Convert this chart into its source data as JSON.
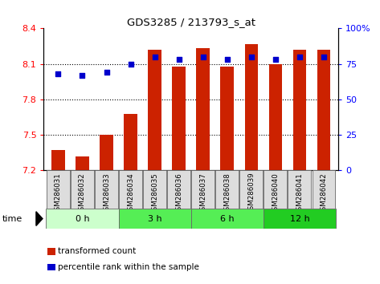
{
  "title": "GDS3285 / 213793_s_at",
  "samples": [
    "GSM286031",
    "GSM286032",
    "GSM286033",
    "GSM286034",
    "GSM286035",
    "GSM286036",
    "GSM286037",
    "GSM286038",
    "GSM286039",
    "GSM286040",
    "GSM286041",
    "GSM286042"
  ],
  "transformed_count": [
    7.37,
    7.32,
    7.5,
    7.68,
    8.22,
    8.08,
    8.23,
    8.08,
    8.27,
    8.1,
    8.22,
    8.22
  ],
  "percentile_rank": [
    68,
    67,
    69,
    75,
    80,
    78,
    80,
    78,
    80,
    78,
    80,
    80
  ],
  "groups": [
    {
      "label": "0 h",
      "start": 0,
      "end": 3,
      "color": "#ccffcc"
    },
    {
      "label": "3 h",
      "start": 3,
      "end": 6,
      "color": "#55ee55"
    },
    {
      "label": "6 h",
      "start": 6,
      "end": 9,
      "color": "#55ee55"
    },
    {
      "label": "12 h",
      "start": 9,
      "end": 12,
      "color": "#22cc22"
    }
  ],
  "ylim_left": [
    7.2,
    8.4
  ],
  "ylim_right": [
    0,
    100
  ],
  "yticks_left": [
    7.2,
    7.5,
    7.8,
    8.1,
    8.4
  ],
  "yticks_right": [
    0,
    25,
    50,
    75,
    100
  ],
  "bar_color": "#cc2200",
  "dot_color": "#0000cc",
  "bar_width": 0.55
}
